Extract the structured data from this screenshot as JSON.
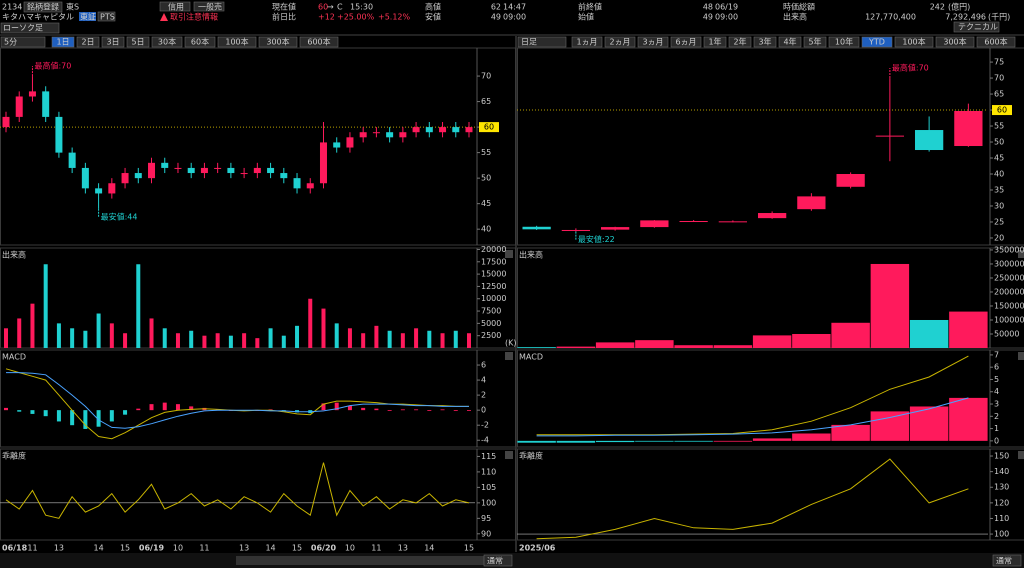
{
  "header": {
    "code": "2134",
    "register": "銘柄登録",
    "market": "東S",
    "name": "キタハマキャピタル",
    "tabs": [
      "東証",
      "PTS"
    ],
    "trade_buttons": [
      "信用",
      "一般売"
    ],
    "notice": "取引注意情報",
    "chart_style": "ローソク足",
    "technical": "テクニカル",
    "price_label": "現在値",
    "price": "60",
    "arrow": "→",
    "flag": "C",
    "price_time": "15:30",
    "change_label": "前日比",
    "change": "+12",
    "change_pct": "+25.00%",
    "change_pct2": "+5.12%",
    "high_label": "高値",
    "high": "62",
    "high_time": "14:47",
    "low_label": "安値",
    "low": "49",
    "low_time": "09:00",
    "prev_label": "前終値",
    "prev": "48",
    "prev_date": "06/19",
    "open_label": "始値",
    "open": "49",
    "open_time": "09:00",
    "cap_label": "時価総額",
    "cap": "242",
    "cap_unit": "(億円)",
    "volume_label": "出来高",
    "volume": "127,770,400",
    "turnover": "7,292,496",
    "turnover_unit": "(千円)"
  },
  "toolbar_left": {
    "interval": "5分",
    "buttons": [
      "1日",
      "2日",
      "3日",
      "5日",
      "30本",
      "60本",
      "100本",
      "300本",
      "600本"
    ],
    "active_index": 0
  },
  "toolbar_right": {
    "interval": "日足",
    "buttons": [
      "1ヵ月",
      "2ヵ月",
      "3ヵ月",
      "6ヵ月",
      "1年",
      "2年",
      "3年",
      "4年",
      "5年",
      "10年",
      "YTD",
      "100本",
      "300本",
      "600本"
    ],
    "active_index": 10
  },
  "footer": {
    "mode": "通常"
  },
  "chart_data": [
    {
      "type": "candlestick",
      "categories": [
        "06/18",
        null,
        "11",
        null,
        "13",
        null,
        null,
        "14",
        null,
        "15",
        null,
        "06/19",
        null,
        "10",
        null,
        "11",
        null,
        null,
        "13",
        null,
        "14",
        null,
        "15",
        null,
        "06/20",
        null,
        "10",
        null,
        "11",
        null,
        "13",
        null,
        "14",
        null,
        null,
        "15"
      ],
      "open": [
        60,
        62,
        66,
        67,
        62,
        55,
        52,
        48,
        47,
        49,
        51,
        50,
        53,
        52,
        52,
        51,
        52,
        52,
        51,
        51,
        52,
        51,
        50,
        48,
        49,
        57,
        56,
        58,
        59,
        59,
        58,
        59,
        60,
        59,
        60,
        59
      ],
      "high": [
        63,
        67,
        70,
        68,
        63,
        56,
        53,
        49,
        50,
        52,
        52,
        54,
        54,
        53,
        53,
        53,
        53,
        53,
        52,
        53,
        53,
        52,
        51,
        50,
        61,
        58,
        59,
        60,
        60,
        60,
        60,
        61,
        61,
        61,
        61,
        61
      ],
      "low": [
        59,
        61,
        65,
        61,
        54,
        51,
        47,
        44,
        46,
        48,
        49,
        49,
        51,
        51,
        50,
        50,
        51,
        50,
        50,
        50,
        50,
        49,
        47,
        47,
        48,
        55,
        55,
        57,
        58,
        57,
        57,
        58,
        58,
        58,
        58,
        58
      ],
      "close": [
        62,
        66,
        67,
        62,
        55,
        52,
        48,
        47,
        49,
        51,
        50,
        53,
        52,
        52,
        51,
        52,
        52,
        51,
        51,
        52,
        51,
        50,
        48,
        49,
        57,
        56,
        58,
        59,
        59,
        58,
        59,
        60,
        59,
        60,
        59,
        60
      ],
      "up_color": "#ff1a5c",
      "down_color": "#1fd1d1",
      "ylim": [
        36.9,
        75.5
      ],
      "yticks": [
        40,
        45,
        50,
        55,
        60,
        65,
        70
      ],
      "current_value": 60,
      "annotations": [
        {
          "text": "最高値:70",
          "value": 70,
          "color": "#ff1a5c"
        },
        {
          "text": "最安値:44",
          "value": 44,
          "color": "#1fd1d1"
        }
      ]
    },
    {
      "type": "bar",
      "title": "出来高",
      "unit_label": "(K)",
      "values": [
        4000,
        6000,
        9000,
        17000,
        5000,
        4000,
        3500,
        7000,
        5000,
        3000,
        17000,
        6000,
        4000,
        3000,
        3500,
        2500,
        3000,
        2500,
        3000,
        2000,
        4000,
        2500,
        4500,
        10000,
        8000,
        5000,
        4000,
        3000,
        4500,
        3500,
        3000,
        4000,
        3500,
        3000,
        3500,
        3000
      ],
      "ylim": [
        0,
        20300
      ],
      "yticks": [
        2500,
        5000,
        7500,
        10000,
        12500,
        15000,
        17500,
        20000
      ]
    },
    {
      "type": "macd",
      "title": "MACD",
      "histogram": [
        0.3,
        -0.2,
        -0.5,
        -0.8,
        -1.5,
        -2,
        -2.5,
        -2.2,
        -1.5,
        -0.6,
        0.2,
        0.8,
        1,
        0.8,
        0.5,
        0.3,
        0.1,
        0,
        -0.1,
        0,
        0.1,
        -0.1,
        -0.3,
        -0.4,
        0.9,
        1,
        0.6,
        0.3,
        0.2,
        0,
        0.1,
        0.1,
        0,
        0.1,
        0,
        0
      ],
      "pos_color": "#ff1a5c",
      "neg_color": "#1fd1d1",
      "lines": [
        {
          "color": "#c8b400",
          "values": [
            5.5,
            5,
            4.5,
            4,
            2,
            0,
            -2,
            -3.5,
            -3.8,
            -3,
            -2,
            -1,
            -0.3,
            0,
            0.1,
            0.2,
            0.1,
            0,
            -0.1,
            0,
            0,
            -0.2,
            -0.5,
            -0.6,
            0.8,
            1.2,
            1.2,
            1.1,
            1,
            0.8,
            0.8,
            0.7,
            0.6,
            0.6,
            0.5,
            0.5
          ]
        },
        {
          "color": "#4aa3ff",
          "values": [
            5,
            5,
            4.9,
            4.7,
            3.4,
            2,
            0.5,
            -1.3,
            -2.3,
            -2.4,
            -2.2,
            -1.8,
            -1.3,
            -0.8,
            -0.4,
            -0.1,
            0,
            0,
            0,
            0,
            -0.1,
            -0.1,
            -0.2,
            -0.2,
            -0.1,
            0.2,
            0.6,
            0.8,
            0.8,
            0.8,
            0.7,
            0.6,
            0.6,
            0.5,
            0.5,
            0.5
          ]
        }
      ],
      "ylim": [
        -4.9,
        8
      ],
      "yticks": [
        -4,
        -2,
        0,
        2,
        4,
        6
      ]
    },
    {
      "type": "line",
      "title": "乖離度",
      "color": "#c8b400",
      "reference_line": 100,
      "values": [
        101,
        98,
        104,
        96,
        95,
        102,
        97,
        99,
        103,
        97,
        101,
        106,
        98,
        100,
        103,
        99,
        101,
        98,
        102,
        100,
        97,
        103,
        99,
        96,
        113,
        96,
        104,
        99,
        102,
        98,
        101,
        100,
        103,
        99,
        101,
        100
      ],
      "ylim": [
        88,
        117.4
      ],
      "yticks": [
        90,
        95,
        100,
        105,
        110,
        115
      ]
    },
    {
      "type": "candlestick",
      "categories": [
        "2025/06",
        null,
        null,
        null,
        null,
        null,
        null,
        null,
        null,
        null,
        null,
        null
      ],
      "open": [
        23.5,
        22.5,
        22.6,
        23.4,
        25.3,
        25.2,
        26.2,
        29,
        36,
        52,
        53.75,
        48.75
      ],
      "high": [
        23.8,
        23,
        23.5,
        25.6,
        25.6,
        25.5,
        28.3,
        34,
        40.5,
        70,
        58,
        62
      ],
      "low": [
        22.5,
        22,
        22.3,
        23.2,
        25,
        24.9,
        26,
        28.5,
        35.5,
        44,
        47,
        48.5
      ],
      "close": [
        22.7,
        22.5,
        23.4,
        25.5,
        25.3,
        25.2,
        27.8,
        33,
        40,
        52,
        47.5,
        59.7
      ],
      "up_color": "#ff1a5c",
      "down_color": "#1fd1d1",
      "ylim": [
        17.8,
        79.4
      ],
      "yticks": [
        20,
        25,
        30,
        35,
        40,
        45,
        50,
        55,
        60,
        65,
        70,
        75
      ],
      "current_value": 60,
      "annotations": [
        {
          "text": "最高値:70",
          "value": 70,
          "color": "#ff1a5c"
        },
        {
          "text": "最安値:22",
          "value": 22,
          "color": "#1fd1d1"
        }
      ]
    },
    {
      "type": "bar",
      "title": "出来高",
      "values": [
        3000,
        5000,
        20000,
        28000,
        10000,
        10000,
        45000,
        50000,
        90000,
        300000,
        100000,
        130000
      ],
      "ylim": [
        0,
        357000
      ],
      "yticks": [
        50000,
        100000,
        150000,
        200000,
        250000,
        300000,
        350000
      ]
    },
    {
      "type": "macd",
      "title": "MACD",
      "histogram": [
        -0.15,
        -0.15,
        -0.1,
        -0.05,
        -0.02,
        0,
        0.2,
        0.6,
        1.3,
        2.4,
        2.8,
        3.5
      ],
      "pos_color": "#ff1a5c",
      "neg_color": "#1fd1d1",
      "lines": [
        {
          "color": "#c8b400",
          "values": [
            0.5,
            0.5,
            0.5,
            0.5,
            0.55,
            0.6,
            0.9,
            1.6,
            2.7,
            4.2,
            5.2,
            6.9
          ]
        },
        {
          "color": "#4aa3ff",
          "values": [
            0.4,
            0.4,
            0.45,
            0.45,
            0.5,
            0.55,
            0.65,
            0.9,
            1.3,
            1.9,
            2.6,
            3.5
          ]
        }
      ],
      "ylim": [
        -0.5,
        7.4
      ],
      "yticks": [
        0,
        1,
        2,
        3,
        4,
        5,
        6,
        7
      ]
    },
    {
      "type": "line",
      "title": "乖離度",
      "color": "#c8b400",
      "reference_line": 100,
      "values": [
        97,
        98,
        103,
        110,
        104,
        103,
        107,
        119,
        129,
        148,
        120,
        129
      ],
      "ylim": [
        96.2,
        154.5
      ],
      "yticks": [
        100,
        110,
        120,
        130,
        140,
        150
      ]
    }
  ]
}
